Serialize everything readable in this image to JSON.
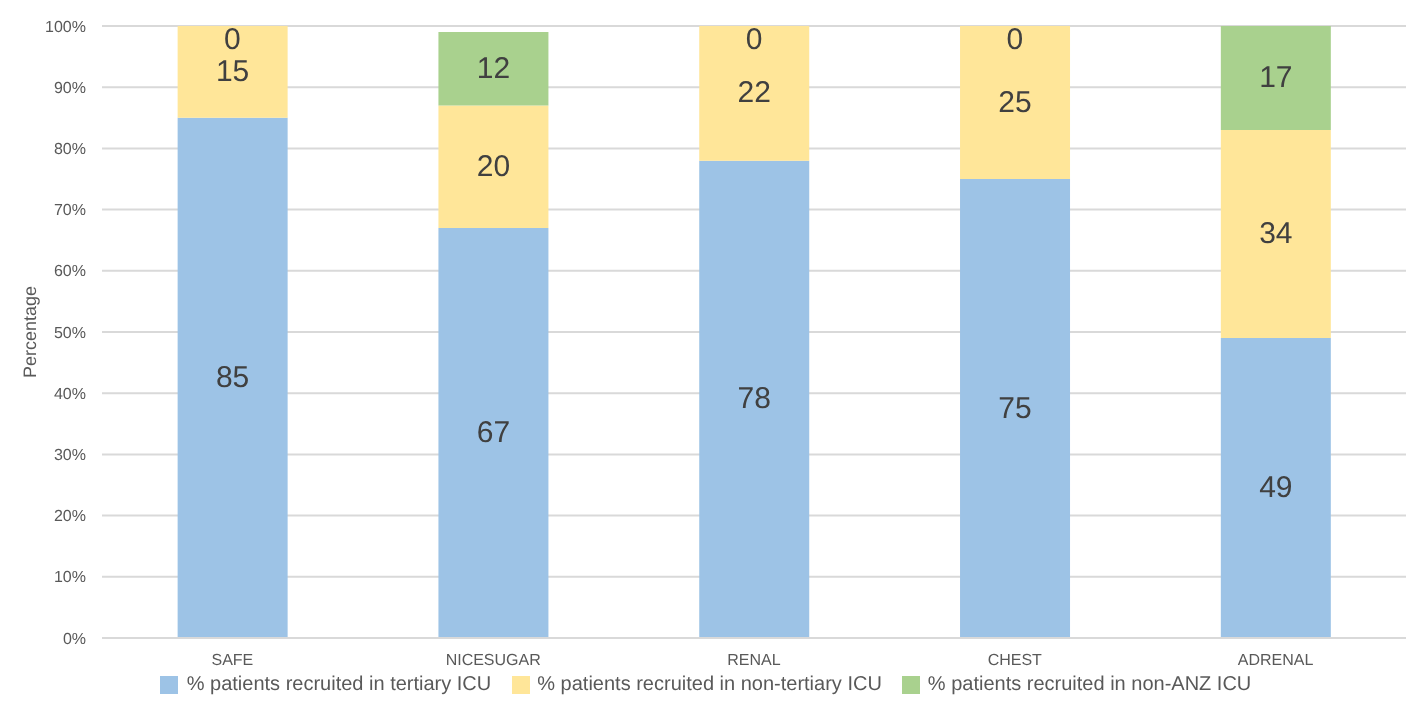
{
  "chart_data": {
    "type": "bar",
    "stacked": true,
    "ylabel": "Percentage",
    "categories": [
      "SAFE",
      "NICESUGAR",
      "RENAL",
      "CHEST",
      "ADRENAL"
    ],
    "series": [
      {
        "name": "% patients recruited in tertiary ICU",
        "color": "#9dc3e6",
        "values": [
          85,
          67,
          78,
          75,
          49
        ]
      },
      {
        "name": "% patients recruited in non-tertiary ICU",
        "color": "#ffe699",
        "values": [
          15,
          20,
          22,
          25,
          34
        ]
      },
      {
        "name": "% patients recruited in non-ANZ ICU",
        "color": "#a9d18e",
        "values": [
          0,
          12,
          0,
          0,
          17
        ]
      }
    ],
    "ylim": [
      0,
      100
    ],
    "yticks": [
      {
        "value": 0,
        "label": "0%"
      },
      {
        "value": 10,
        "label": "10%"
      },
      {
        "value": 20,
        "label": "20%"
      },
      {
        "value": 30,
        "label": "30%"
      },
      {
        "value": 40,
        "label": "40%"
      },
      {
        "value": 50,
        "label": "50%"
      },
      {
        "value": 60,
        "label": "60%"
      },
      {
        "value": 70,
        "label": "70%"
      },
      {
        "value": 80,
        "label": "80%"
      },
      {
        "value": 90,
        "label": "90%"
      },
      {
        "value": 100,
        "label": "100%"
      }
    ],
    "grid": "y",
    "legend": "bottom",
    "data_labels": true
  }
}
